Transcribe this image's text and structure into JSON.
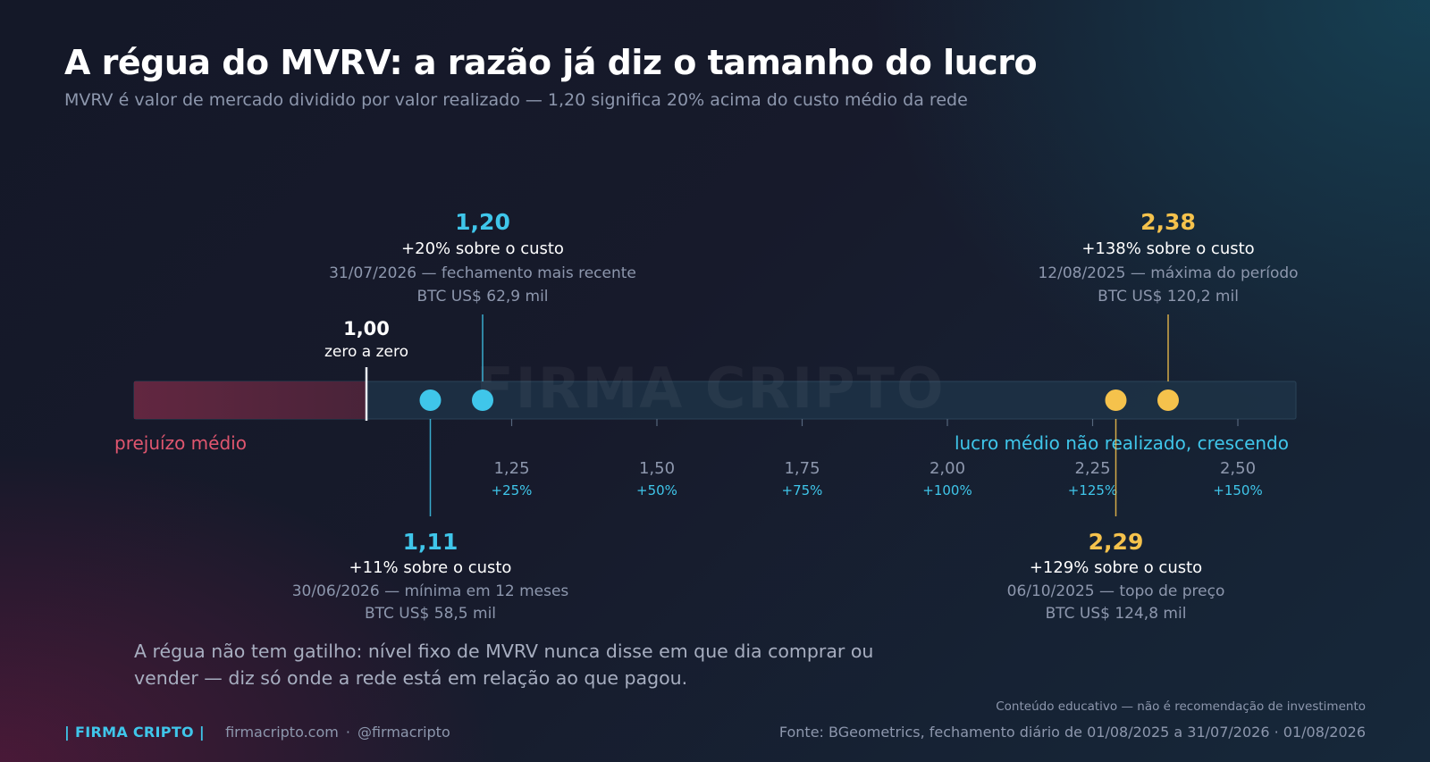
{
  "header": {
    "title": "A régua do MVRV: a razão já diz o tamanho do lucro",
    "subtitle": "MVRV é valor de mercado dividido por valor realizado — 1,20 significa 20% acima do custo médio da rede"
  },
  "colors": {
    "loss": "#e0566f",
    "recent": "#3fc6ea",
    "peak": "#f5c24c",
    "profit_text": "#3fc6ea"
  },
  "chart_data": {
    "type": "scatter",
    "xlim": [
      0.6,
      2.6
    ],
    "watermark": "FIRMA CRIPTO",
    "ticks": [
      {
        "value": 1.25,
        "label": "1,25",
        "pct": "+25%"
      },
      {
        "value": 1.5,
        "label": "1,50",
        "pct": "+50%"
      },
      {
        "value": 1.75,
        "label": "1,75",
        "pct": "+75%"
      },
      {
        "value": 2.0,
        "label": "2,00",
        "pct": "+100%"
      },
      {
        "value": 2.25,
        "label": "2,25",
        "pct": "+125%"
      },
      {
        "value": 2.5,
        "label": "2,50",
        "pct": "+150%"
      }
    ],
    "zero_marker": {
      "value": 1.0,
      "label": "1,00",
      "note": "zero a zero"
    },
    "zones": {
      "loss_label": "prejuízo médio",
      "profit_label": "lucro médio não realizado, crescendo"
    },
    "points": [
      {
        "value": 1.2,
        "label": "1,20",
        "pct": "+20% sobre o custo",
        "date": "31/07/2026 — fechamento mais recente",
        "price": "BTC US$ 62,9 mil",
        "position": "above",
        "color_key": "recent"
      },
      {
        "value": 1.11,
        "label": "1,11",
        "pct": "+11% sobre o custo",
        "date": "30/06/2026 — mínima em 12 meses",
        "price": "BTC US$ 58,5 mil",
        "position": "below",
        "color_key": "recent"
      },
      {
        "value": 2.38,
        "label": "2,38",
        "pct": "+138% sobre o custo",
        "date": "12/08/2025 — máxima do período",
        "price": "BTC US$ 120,2 mil",
        "position": "above",
        "color_key": "peak"
      },
      {
        "value": 2.29,
        "label": "2,29",
        "pct": "+129% sobre o custo",
        "date": "06/10/2025 — topo de preço",
        "price": "BTC US$ 124,8 mil",
        "position": "below",
        "color_key": "peak"
      }
    ]
  },
  "caption": "A régua não tem gatilho: nível fixo de MVRV nunca disse em que dia comprar ou vender — diz só onde a rede está em relação ao que pagou.",
  "footer": {
    "brand": "| FIRMA CRIPTO |",
    "site": "firmacripto.com",
    "separator": "·",
    "handle": "@firmacripto",
    "disclaimer": "Conteúdo educativo — não é recomendação de investimento",
    "source": "Fonte: BGeometrics, fechamento diário de 01/08/2025 a 31/07/2026  ·  01/08/2026"
  }
}
